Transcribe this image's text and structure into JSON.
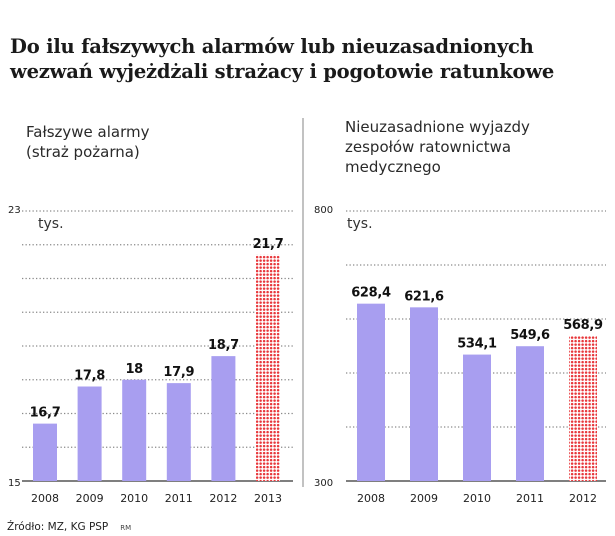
{
  "title_lines": [
    "Do ilu fałszywych alarmów lub nieuzasadnionych",
    "wezwań wyjeżdżali strażacy i pogotowie ratunkowe"
  ],
  "source": "Źródło: MZ, KG PSP",
  "author_mark": "RM",
  "colors": {
    "bar": "#a89ef0",
    "highlight": "#e8383c",
    "grid": "#8a8a8a"
  },
  "chart_data": [
    {
      "type": "bar",
      "subtitle": "Fałszywe alarmy\n(straż pożarna)",
      "unit": "tys.",
      "categories": [
        "2008",
        "2009",
        "2010",
        "2011",
        "2012",
        "2013"
      ],
      "values": [
        16.7,
        17.8,
        18,
        17.9,
        18.7,
        21.7
      ],
      "value_labels": [
        "16,7",
        "17,8",
        "18",
        "17,9",
        "18,7",
        "21,7"
      ],
      "highlight_index": 5,
      "ylim": [
        15,
        23
      ],
      "ytick_labels": [
        "15",
        "23"
      ],
      "gridlines": [
        16,
        17,
        18,
        19,
        20,
        21,
        22,
        23
      ],
      "grid": true
    },
    {
      "type": "bar",
      "subtitle": "Nieuzasadnione wyjazdy\nzespołów ratownictwa\nmedycznego",
      "unit": "tys.",
      "categories": [
        "2008",
        "2009",
        "2010",
        "2011",
        "2012"
      ],
      "values": [
        628.4,
        621.6,
        534.1,
        549.6,
        568.9
      ],
      "value_labels": [
        "628,4",
        "621,6",
        "534,1",
        "549,6",
        "568,9"
      ],
      "highlight_index": 4,
      "ylim": [
        300,
        800
      ],
      "ytick_labels": [
        "300",
        "800"
      ],
      "gridlines": [
        400,
        500,
        600,
        700,
        800
      ],
      "grid": true
    }
  ]
}
